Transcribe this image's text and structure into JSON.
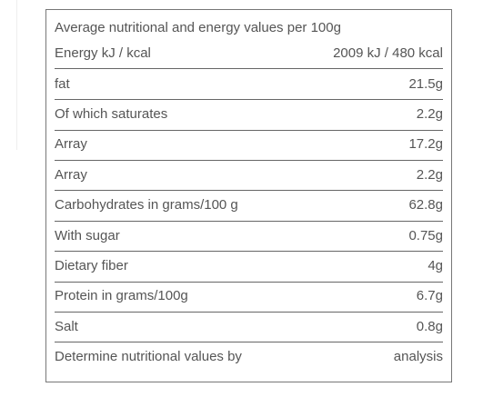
{
  "table": {
    "title": "Average nutritional and energy values per 100g",
    "rows": [
      [
        "Energy kJ / kcal",
        "2009 kJ / 480 kcal"
      ],
      [
        "fat",
        "21.5g"
      ],
      [
        "Of which saturates",
        "2.2g"
      ],
      [
        "Array",
        "17.2g"
      ],
      [
        "Array",
        "2.2g"
      ],
      [
        "Carbohydrates in grams/100 g",
        "62.8g"
      ],
      [
        "With sugar",
        "0.75g"
      ],
      [
        "Dietary fiber",
        "4g"
      ],
      [
        "Protein in grams/100g",
        "6.7g"
      ],
      [
        "Salt",
        "0.8g"
      ],
      [
        "Determine nutritional values by",
        "analysis"
      ]
    ]
  }
}
